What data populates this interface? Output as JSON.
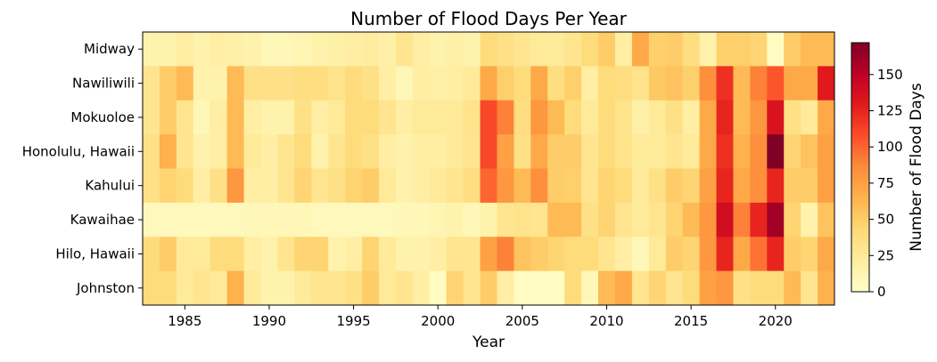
{
  "chart_data": {
    "type": "heatmap",
    "title": "Number of Flood Days Per Year",
    "xlabel": "Year",
    "ylabel": "",
    "colorbar_label": "Number of Flood Days",
    "colormap": "YlOrRd",
    "colormap_stops": [
      "#ffffcc",
      "#ffeda0",
      "#fed976",
      "#feb24c",
      "#fd8d3c",
      "#fc4e2a",
      "#e31a1c",
      "#bd0026",
      "#800026"
    ],
    "value_range": [
      0,
      172
    ],
    "colorbar_ticks": [
      0,
      25,
      50,
      75,
      100,
      125,
      150
    ],
    "x_ticks": [
      1985,
      1990,
      1995,
      2000,
      2005,
      2010,
      2015,
      2020
    ],
    "x_range": [
      1982.5,
      2023.5
    ],
    "x": [
      1983,
      1984,
      1985,
      1986,
      1987,
      1988,
      1989,
      1990,
      1991,
      1992,
      1993,
      1994,
      1995,
      1996,
      1997,
      1998,
      1999,
      2000,
      2001,
      2002,
      2003,
      2004,
      2005,
      2006,
      2007,
      2008,
      2009,
      2010,
      2011,
      2012,
      2013,
      2014,
      2015,
      2016,
      2017,
      2018,
      2019,
      2020,
      2021,
      2022,
      2023
    ],
    "y": [
      "Midway",
      "Nawiliwili",
      "Mokuoloe",
      "Honolulu, Hawaii",
      "Kahului",
      "Kawaihae",
      "Hilo, Hawaii",
      "Johnston"
    ],
    "values": [
      [
        15,
        15,
        20,
        15,
        20,
        18,
        15,
        10,
        10,
        12,
        15,
        18,
        20,
        22,
        18,
        30,
        20,
        15,
        18,
        15,
        40,
        35,
        30,
        25,
        25,
        30,
        40,
        50,
        20,
        70,
        48,
        50,
        38,
        15,
        48,
        48,
        45,
        5,
        50,
        60,
        60
      ],
      [
        30,
        50,
        60,
        15,
        15,
        60,
        35,
        35,
        35,
        38,
        38,
        32,
        40,
        35,
        20,
        10,
        20,
        18,
        20,
        25,
        70,
        48,
        40,
        70,
        38,
        48,
        20,
        40,
        38,
        32,
        52,
        55,
        48,
        85,
        120,
        60,
        90,
        105,
        70,
        70,
        130
      ],
      [
        30,
        50,
        30,
        10,
        20,
        60,
        20,
        15,
        15,
        35,
        20,
        25,
        40,
        40,
        30,
        20,
        25,
        25,
        25,
        32,
        110,
        90,
        38,
        80,
        60,
        40,
        25,
        40,
        32,
        18,
        25,
        35,
        20,
        70,
        125,
        60,
        80,
        135,
        35,
        25,
        70
      ],
      [
        35,
        65,
        30,
        15,
        20,
        60,
        25,
        20,
        30,
        40,
        15,
        30,
        40,
        35,
        20,
        15,
        20,
        20,
        25,
        30,
        110,
        75,
        35,
        70,
        50,
        50,
        30,
        40,
        32,
        25,
        25,
        30,
        25,
        70,
        120,
        65,
        85,
        172,
        45,
        55,
        75
      ],
      [
        35,
        45,
        40,
        20,
        35,
        80,
        20,
        20,
        30,
        45,
        30,
        35,
        45,
        50,
        25,
        15,
        20,
        25,
        30,
        38,
        100,
        80,
        60,
        85,
        50,
        48,
        30,
        45,
        40,
        25,
        35,
        50,
        45,
        75,
        125,
        70,
        85,
        125,
        50,
        50,
        75
      ],
      [
        8,
        8,
        8,
        8,
        8,
        8,
        10,
        10,
        10,
        10,
        8,
        8,
        8,
        8,
        8,
        10,
        10,
        12,
        15,
        10,
        15,
        30,
        32,
        30,
        60,
        60,
        35,
        45,
        30,
        25,
        30,
        45,
        60,
        80,
        140,
        90,
        125,
        160,
        45,
        15,
        55
      ],
      [
        40,
        50,
        25,
        25,
        40,
        40,
        20,
        15,
        30,
        45,
        45,
        15,
        20,
        45,
        25,
        15,
        15,
        20,
        30,
        30,
        75,
        90,
        55,
        50,
        45,
        40,
        40,
        30,
        20,
        10,
        25,
        50,
        45,
        80,
        125,
        70,
        95,
        125,
        50,
        45,
        70
      ],
      [
        40,
        40,
        25,
        30,
        25,
        65,
        25,
        15,
        15,
        25,
        30,
        30,
        35,
        50,
        25,
        30,
        20,
        5,
        45,
        30,
        50,
        20,
        5,
        5,
        5,
        40,
        10,
        60,
        70,
        30,
        45,
        30,
        40,
        75,
        80,
        35,
        40,
        40,
        60,
        30,
        65
      ]
    ]
  }
}
